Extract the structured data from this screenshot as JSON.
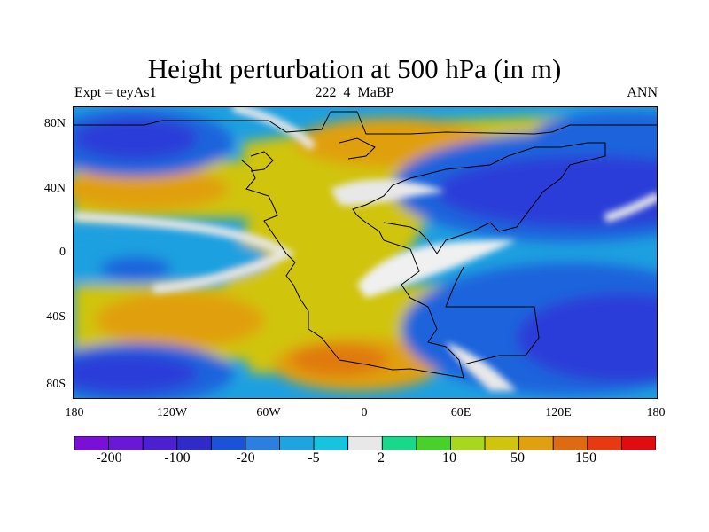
{
  "title": "Height perturbation at 500 hPa (in m)",
  "left_label": "Expt = teyAs1",
  "center_label": "222_4_MaBP",
  "right_label": "ANN",
  "y_ticks": [
    "80N",
    "40N",
    "0",
    "40S",
    "80S"
  ],
  "x_ticks": [
    "180",
    "120W",
    "60W",
    "0",
    "60E",
    "120E",
    "180"
  ],
  "colorbar": {
    "colors": [
      "#7a10d8",
      "#6a18d8",
      "#4a20d0",
      "#2f2ac8",
      "#1a52d8",
      "#2b7fe0",
      "#1ea4e0",
      "#17c4e0",
      "#e8e8e8",
      "#18d88a",
      "#46d22a",
      "#a8d81e",
      "#d0c40c",
      "#e0a010",
      "#e06a10",
      "#e83a10",
      "#e00c10"
    ],
    "labels": [
      "-200",
      "-100",
      "-20",
      "-5",
      "2",
      "10",
      "50",
      "150"
    ]
  },
  "colors": {
    "strong_neg": "#2a3ed8",
    "neg": "#1f64dc",
    "weak_neg": "#1ea0e0",
    "near_zero": "#e8e8e8",
    "weak_pos": "#a8d81e",
    "pos": "#d0c40c",
    "strong_pos": "#e0a010",
    "max_pos": "#e07a10"
  }
}
